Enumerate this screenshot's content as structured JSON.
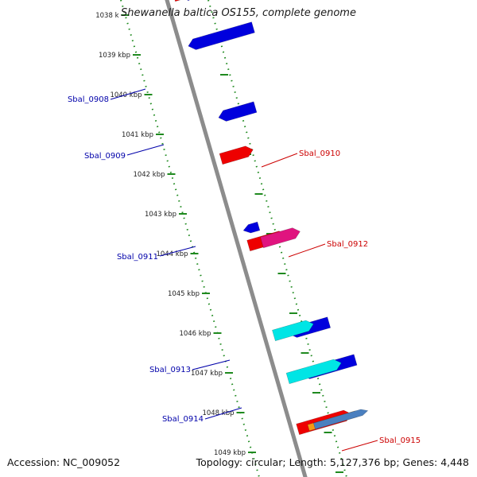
{
  "title": "Shewanella baltica OS155, complete genome",
  "accession": "Accession: NC_009052",
  "summary": "Topology: circular; Length: 5,127,376 bp; Genes: 4,448",
  "colors": {
    "backbone": "#8c8c8c",
    "dotted_track": "#1f8a1f",
    "forward_label": "#cc0000",
    "reverse_label": "#0000aa",
    "gene_blue": "#0000dd",
    "gene_red": "#ee0000",
    "gene_cyan": "#00e5e5",
    "gene_magenta": "#e0147f",
    "gene_orange": "#f59a14",
    "gene_steel": "#4a7fbf"
  },
  "ticks": [
    {
      "label": "1038 k"
    },
    {
      "label": "1039 kbp"
    },
    {
      "label": "1040 kbp"
    },
    {
      "label": "1041 kbp"
    },
    {
      "label": "1042 kbp"
    },
    {
      "label": "1043 kbp"
    },
    {
      "label": "1044 kbp"
    },
    {
      "label": "1045 kbp"
    },
    {
      "label": "1046 kbp"
    },
    {
      "label": "1047 kbp"
    },
    {
      "label": "1048 kbp"
    },
    {
      "label": "1049 kbp"
    }
  ],
  "labels": [
    {
      "name": "Sbal_0908",
      "strand": "reverse"
    },
    {
      "name": "Sbal_0909",
      "strand": "reverse"
    },
    {
      "name": "Sbal_0910",
      "strand": "forward"
    },
    {
      "name": "Sbal_0911",
      "strand": "reverse"
    },
    {
      "name": "Sbal_0912",
      "strand": "forward"
    },
    {
      "name": "Sbal_0913",
      "strand": "reverse"
    },
    {
      "name": "Sbal_0914",
      "strand": "reverse"
    },
    {
      "name": "Sbal_0915",
      "strand": "forward"
    }
  ]
}
